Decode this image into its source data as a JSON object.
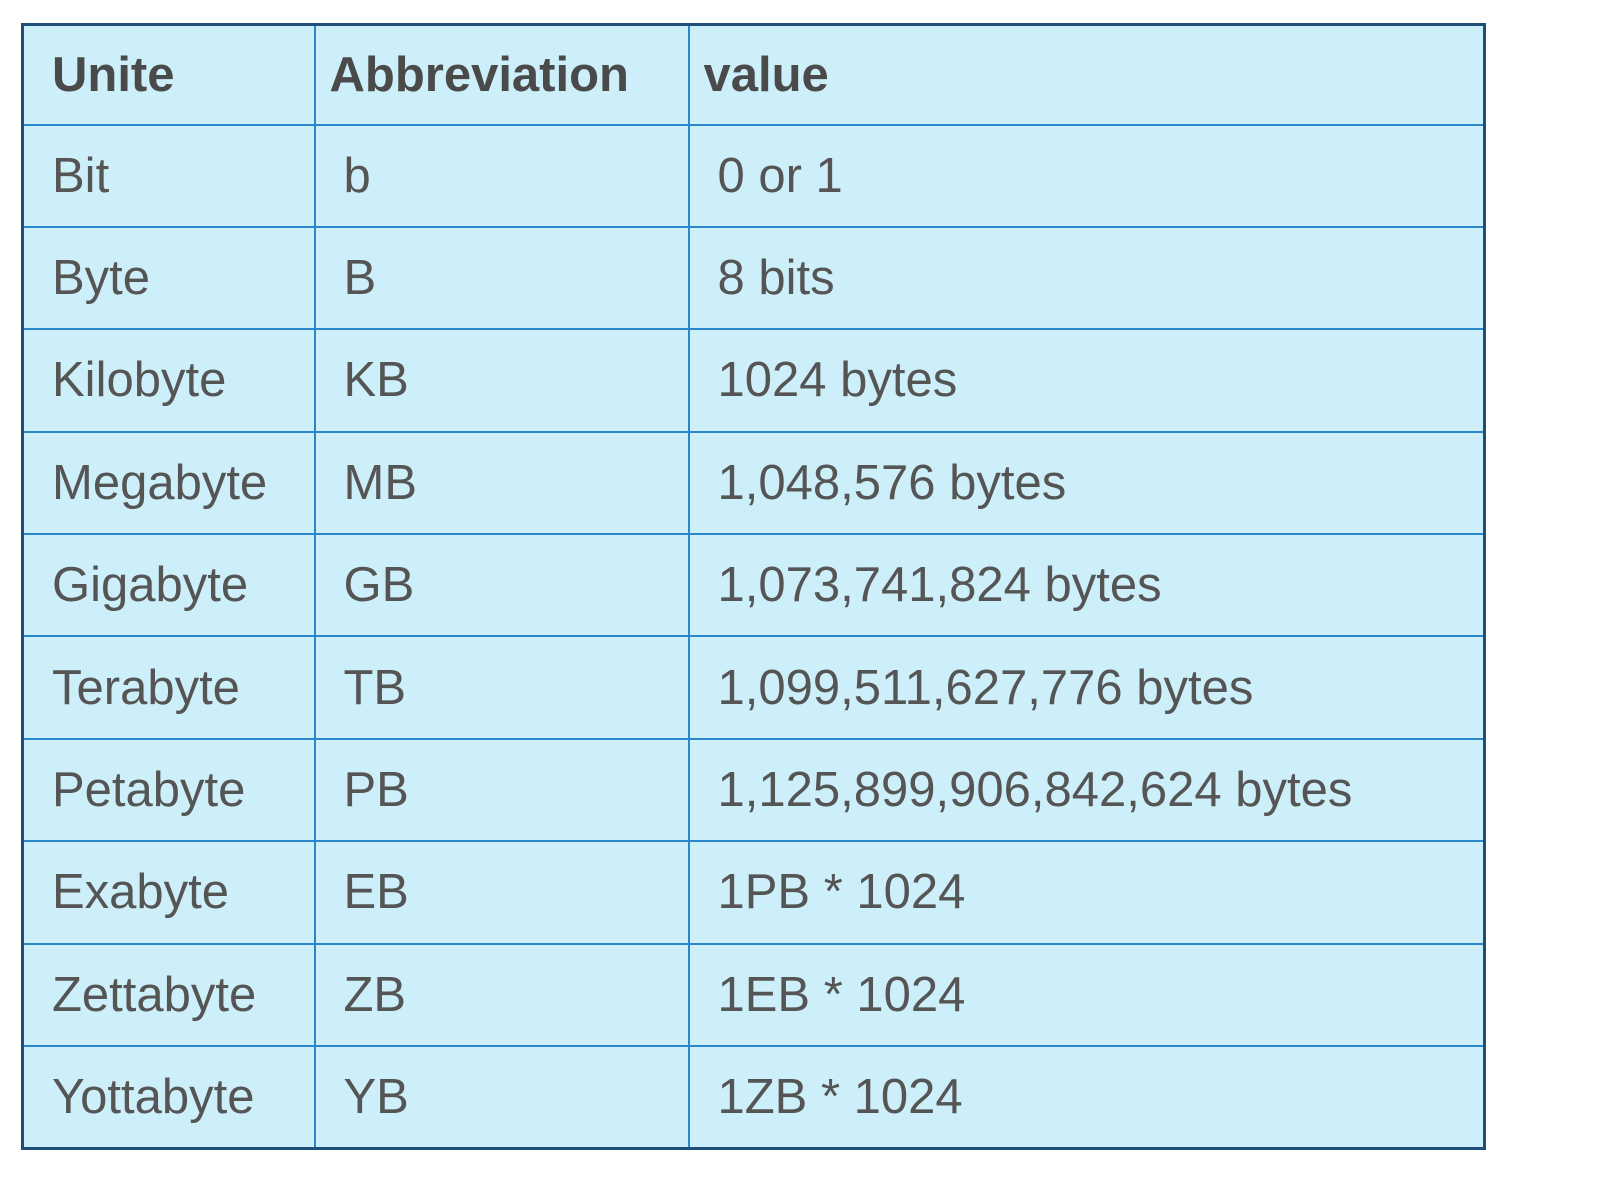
{
  "table": {
    "header": [
      "Unite",
      "Abbreviation",
      "value"
    ],
    "rows": [
      [
        "Bit",
        "b",
        "0 or 1"
      ],
      [
        "Byte",
        "B",
        "8 bits"
      ],
      [
        "Kilobyte",
        "KB",
        "1024 bytes"
      ],
      [
        "Megabyte",
        "MB",
        "1,048,576 bytes"
      ],
      [
        "Gigabyte",
        "GB",
        "1,073,741,824 bytes"
      ],
      [
        "Terabyte",
        "TB",
        "1,099,511,627,776 bytes"
      ],
      [
        "Petabyte",
        "PB",
        "1,125,899,906,842,624 bytes"
      ],
      [
        "Exabyte",
        "EB",
        "1PB * 1024"
      ],
      [
        "Zettabyte",
        "ZB",
        "1EB * 1024"
      ],
      [
        "Yottabyte",
        "YB",
        "1ZB * 1024"
      ]
    ]
  }
}
